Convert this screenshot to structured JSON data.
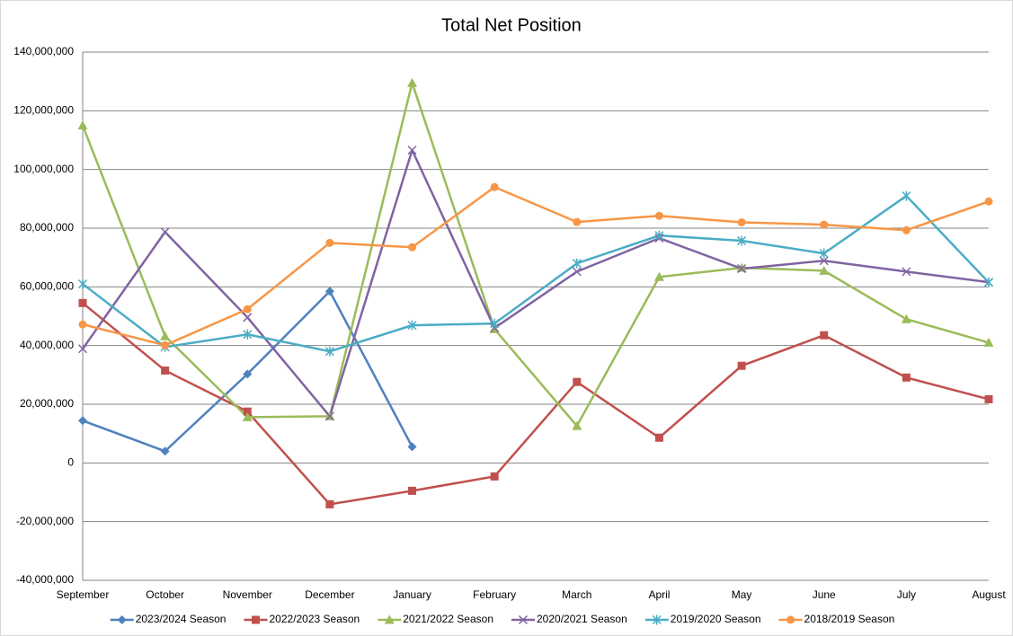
{
  "chart_data": {
    "type": "line",
    "title": "Total Net Position",
    "categories": [
      "September",
      "October",
      "November",
      "December",
      "January",
      "February",
      "March",
      "April",
      "May",
      "June",
      "July",
      "August"
    ],
    "ylim": [
      -40000000,
      140000000
    ],
    "yticks": [
      {
        "value": -40000000,
        "label": "-40,000,000"
      },
      {
        "value": -20000000,
        "label": "-20,000,000"
      },
      0,
      {
        "value": 20000000,
        "label": "20,000,000"
      },
      {
        "value": 40000000,
        "label": "40,000,000"
      },
      {
        "value": 60000000,
        "label": "60,000,000"
      },
      {
        "value": 80000000,
        "label": "80,000,000"
      },
      {
        "value": 100000000,
        "label": "100,000,000"
      },
      {
        "value": 120000000,
        "label": "120,000,000"
      },
      {
        "value": 140000000,
        "label": "140,000,000"
      }
    ],
    "grid": true,
    "legend": "bottom",
    "series": [
      {
        "name": "2023/2024 Season",
        "color": "#4f81bd",
        "marker": "diamond",
        "values": [
          14400000,
          4000000,
          30300000,
          58500000,
          5500000,
          null,
          null,
          null,
          null,
          null,
          null,
          null
        ]
      },
      {
        "name": "2022/2023 Season",
        "color": "#c0504d",
        "marker": "square",
        "values": [
          54500000,
          31500000,
          17500000,
          -14100000,
          -9500000,
          -4600000,
          27600000,
          8600000,
          33100000,
          43500000,
          29100000,
          21700000
        ]
      },
      {
        "name": "2021/2022 Season",
        "color": "#9bbb59",
        "marker": "triangle",
        "values": [
          115000000,
          43200000,
          15600000,
          15900000,
          129500000,
          45600000,
          12600000,
          63400000,
          66500000,
          65500000,
          49000000,
          41000000
        ]
      },
      {
        "name": "2020/2021 Season",
        "color": "#8064a2",
        "marker": "x",
        "values": [
          38900000,
          78700000,
          49600000,
          15900000,
          106600000,
          46000000,
          65200000,
          76600000,
          66200000,
          68900000,
          65200000,
          61600000
        ]
      },
      {
        "name": "2019/2020 Season",
        "color": "#4bacc6",
        "marker": "star",
        "values": [
          61000000,
          39500000,
          43800000,
          38000000,
          46900000,
          47500000,
          68000000,
          77500000,
          75700000,
          71400000,
          91000000,
          61500000
        ]
      },
      {
        "name": "2018/2019 Season",
        "color": "#f79646",
        "marker": "circle",
        "values": [
          47200000,
          40100000,
          52400000,
          75000000,
          73500000,
          94000000,
          82100000,
          84200000,
          82000000,
          81200000,
          79300000,
          89100000
        ]
      }
    ]
  }
}
